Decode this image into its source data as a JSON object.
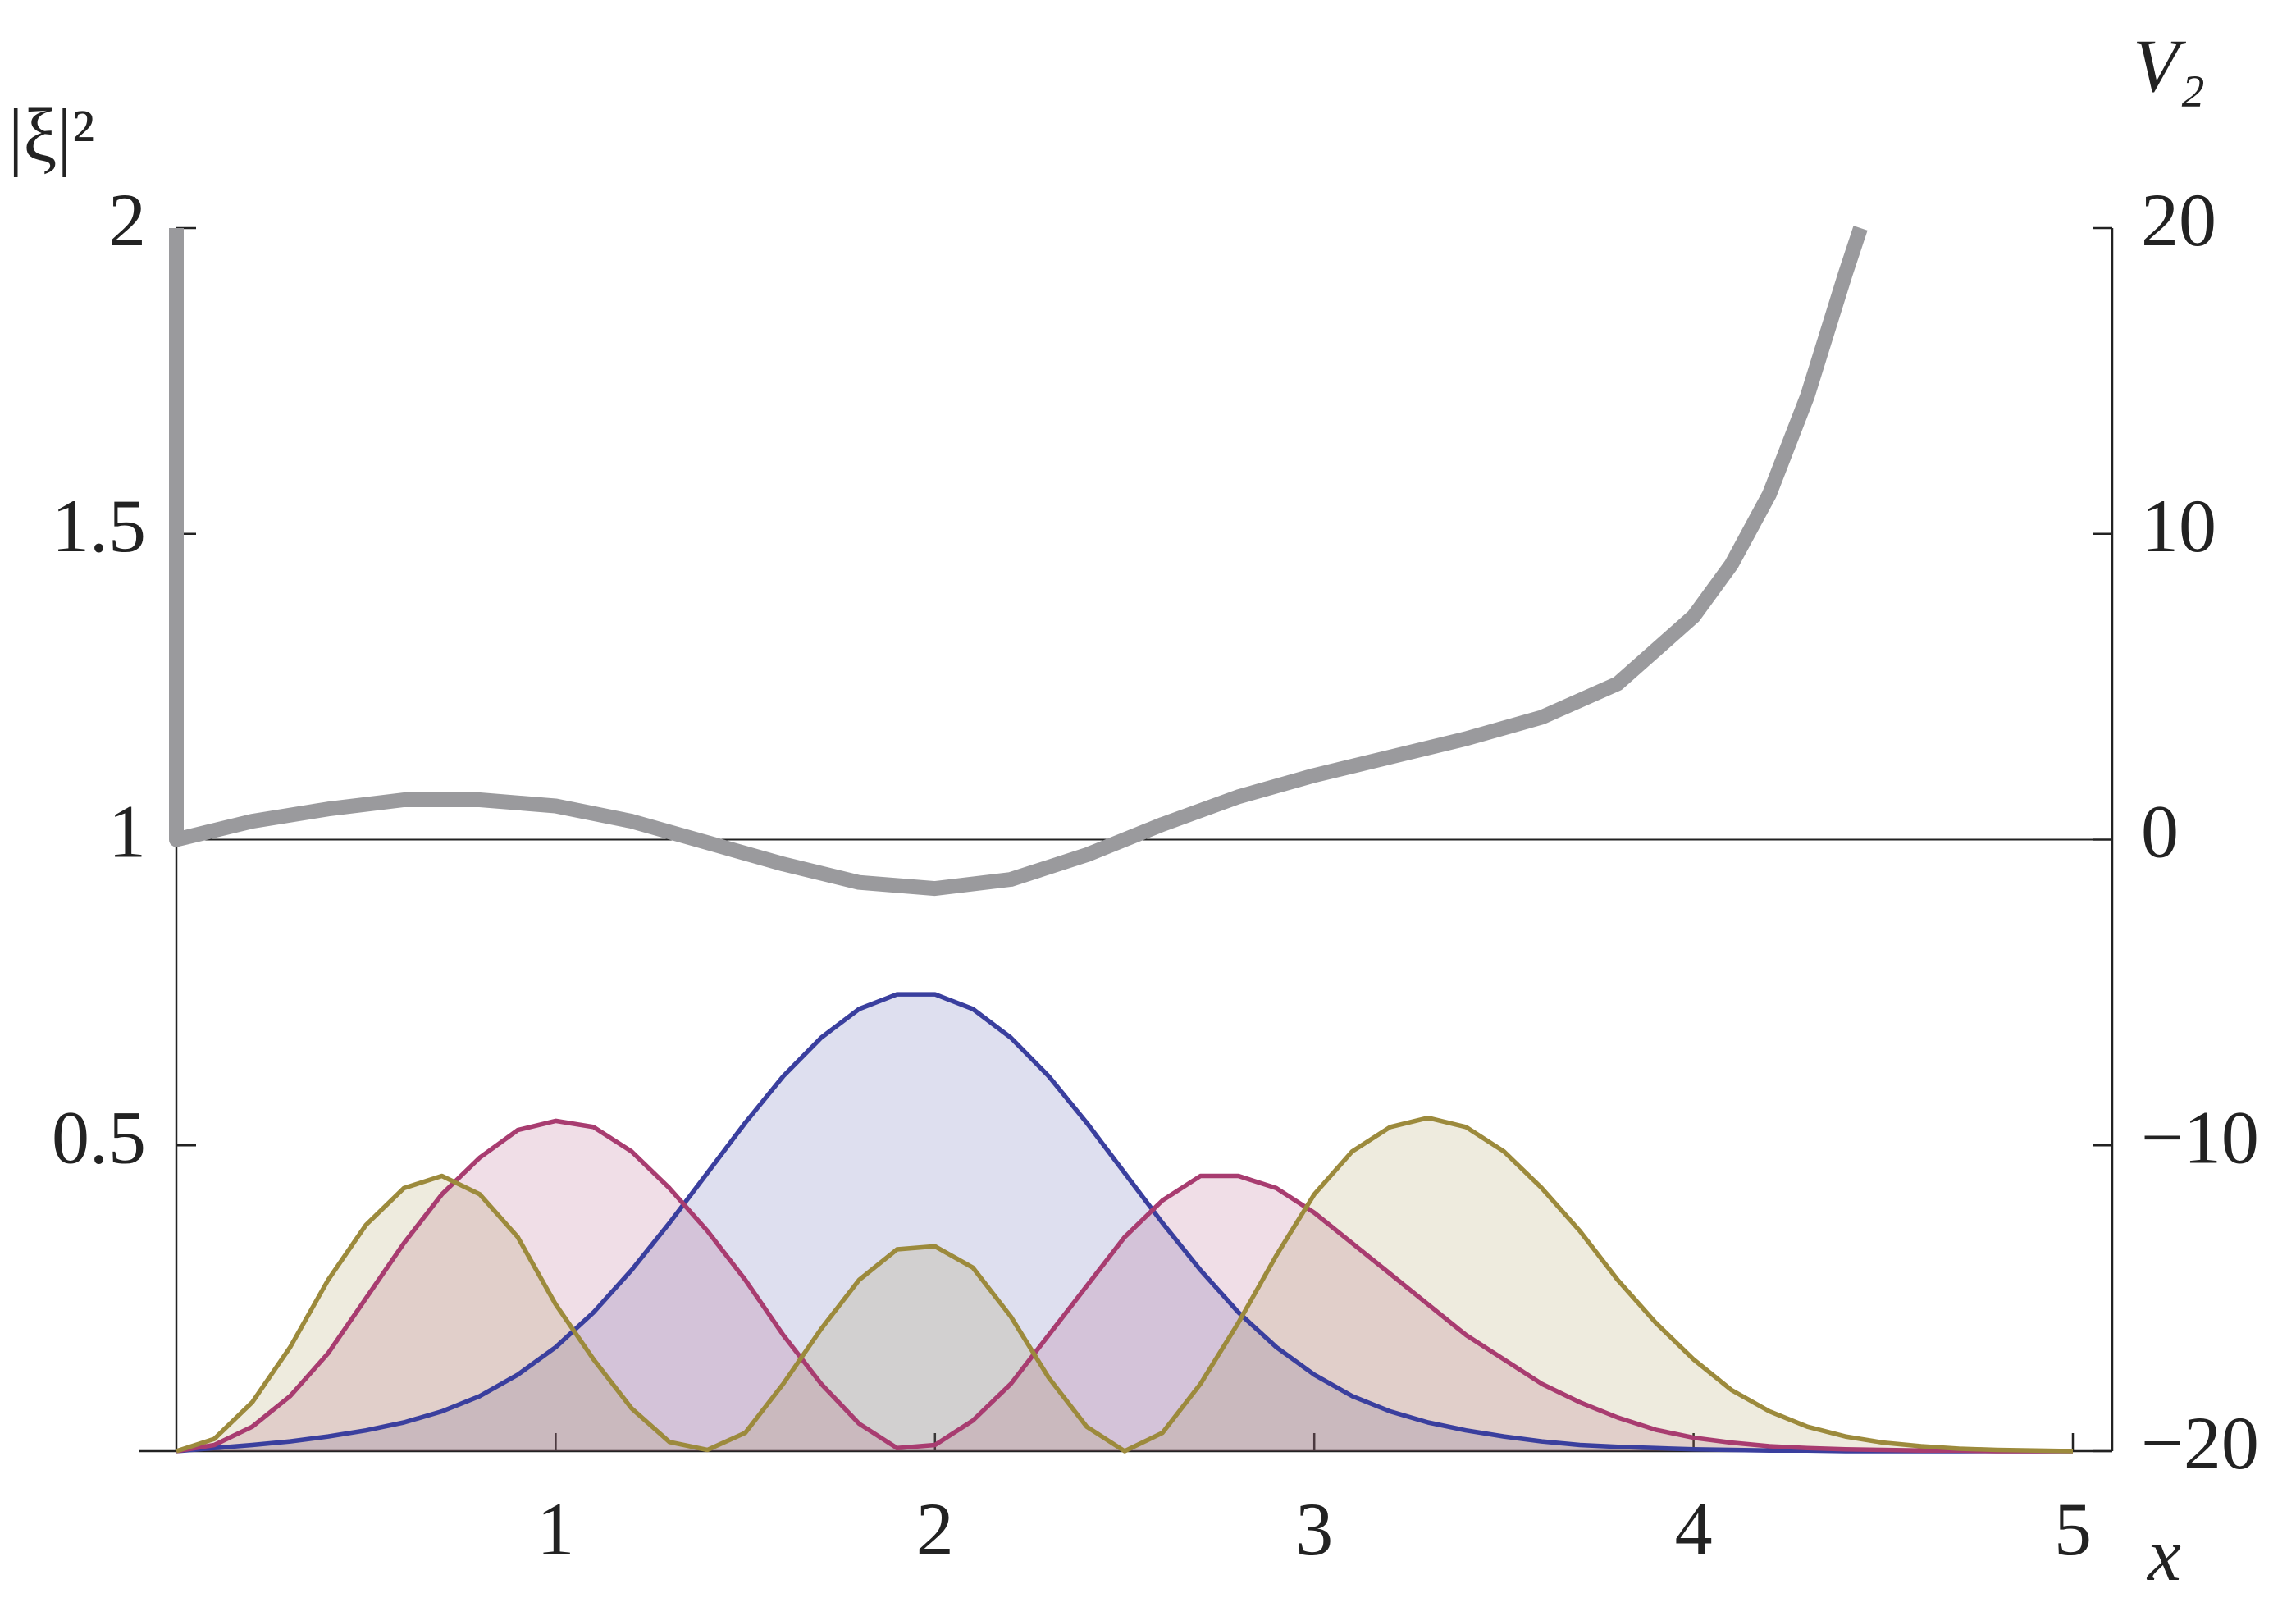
{
  "chart_data": {
    "type": "line",
    "ylabel": "|ξ|²",
    "y2label": "V₂",
    "xlabel": "x",
    "xlim": [
      0,
      5
    ],
    "xticks": [
      1,
      2,
      3,
      4,
      5
    ],
    "ylim": [
      0,
      2
    ],
    "yticks": [
      0.5,
      1,
      1.5,
      2
    ],
    "y2lim": [
      -20,
      20
    ],
    "y2ticks": [
      {
        "value": -20,
        "label": "−20"
      },
      {
        "value": -10,
        "label": "−10"
      },
      0,
      10,
      20
    ],
    "fill": true,
    "x": [
      0,
      0.1,
      0.2,
      0.3,
      0.4,
      0.5,
      0.6,
      0.7,
      0.8,
      0.9,
      1.0,
      1.1,
      1.2,
      1.3,
      1.4,
      1.5,
      1.6,
      1.7,
      1.8,
      1.9,
      2.0,
      2.1,
      2.2,
      2.3,
      2.4,
      2.5,
      2.6,
      2.7,
      2.8,
      2.9,
      3.0,
      3.1,
      3.2,
      3.3,
      3.4,
      3.5,
      3.6,
      3.7,
      3.8,
      3.9,
      4.0,
      4.1,
      4.2,
      4.3,
      4.4,
      4.5,
      4.6,
      4.7,
      4.8,
      4.9,
      5.0
    ],
    "series": [
      {
        "color": "#3a3f9e",
        "values": [
          0,
          0.005,
          0.01,
          0.016,
          0.024,
          0.034,
          0.047,
          0.065,
          0.09,
          0.125,
          0.17,
          0.227,
          0.296,
          0.373,
          0.455,
          0.537,
          0.613,
          0.676,
          0.723,
          0.747,
          0.747,
          0.723,
          0.676,
          0.613,
          0.537,
          0.455,
          0.373,
          0.296,
          0.227,
          0.17,
          0.125,
          0.09,
          0.065,
          0.047,
          0.034,
          0.024,
          0.016,
          0.01,
          0.007,
          0.005,
          0.003,
          0.002,
          0.001,
          0.001,
          0,
          0,
          0,
          0,
          0,
          0,
          0
        ]
      },
      {
        "color": "#a83c70",
        "values": [
          0,
          0.01,
          0.04,
          0.09,
          0.16,
          0.25,
          0.34,
          0.42,
          0.48,
          0.525,
          0.54,
          0.53,
          0.49,
          0.43,
          0.36,
          0.28,
          0.19,
          0.11,
          0.045,
          0.005,
          0.01,
          0.05,
          0.11,
          0.19,
          0.27,
          0.35,
          0.41,
          0.45,
          0.45,
          0.43,
          0.39,
          0.34,
          0.29,
          0.24,
          0.19,
          0.15,
          0.11,
          0.08,
          0.055,
          0.035,
          0.022,
          0.014,
          0.008,
          0.005,
          0.003,
          0.002,
          0.001,
          0.001,
          0,
          0,
          0
        ]
      },
      {
        "color": "#9c8a3c",
        "values": [
          0,
          0.02,
          0.08,
          0.17,
          0.28,
          0.37,
          0.43,
          0.45,
          0.42,
          0.35,
          0.24,
          0.15,
          0.07,
          0.015,
          0.002,
          0.03,
          0.11,
          0.2,
          0.28,
          0.33,
          0.335,
          0.3,
          0.22,
          0.12,
          0.04,
          0,
          0.03,
          0.11,
          0.21,
          0.32,
          0.42,
          0.49,
          0.53,
          0.545,
          0.53,
          0.49,
          0.43,
          0.36,
          0.28,
          0.21,
          0.15,
          0.1,
          0.065,
          0.04,
          0.024,
          0.014,
          0.008,
          0.004,
          0.002,
          0.001,
          0
        ]
      },
      {
        "color": "#9a9a9d",
        "axis": "y2",
        "x": [
          0,
          0,
          0.2,
          0.4,
          0.6,
          0.8,
          1.0,
          1.2,
          1.4,
          1.6,
          1.8,
          2.0,
          2.2,
          2.4,
          2.6,
          2.8,
          3.0,
          3.2,
          3.4,
          3.6,
          3.8,
          4.0,
          4.1,
          4.2,
          4.3,
          4.4,
          4.44
        ],
        "values": [
          20,
          0,
          0.6,
          1.0,
          1.3,
          1.3,
          1.1,
          0.6,
          -0.1,
          -0.8,
          -1.4,
          -1.6,
          -1.3,
          -0.5,
          0.5,
          1.4,
          2.1,
          2.7,
          3.3,
          4.0,
          5.1,
          7.3,
          9.0,
          11.3,
          14.5,
          18.5,
          20
        ]
      }
    ]
  }
}
